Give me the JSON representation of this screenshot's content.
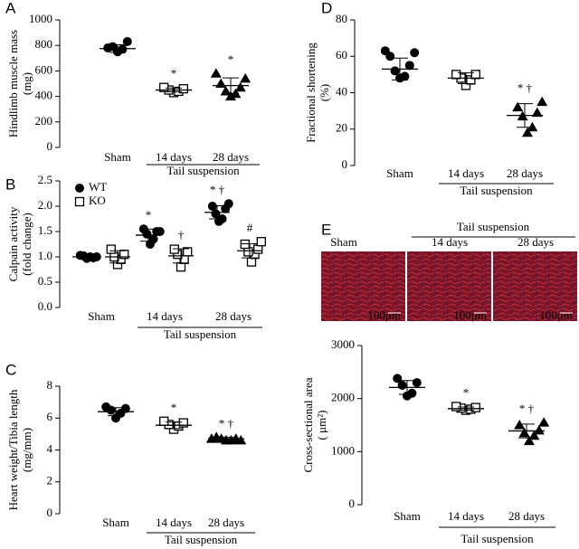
{
  "chart_data": [
    {
      "type": "dot",
      "panel": "A",
      "ylabel": [
        "Hindlimb muscle mass",
        "(mg)"
      ],
      "categories": [
        "Sham",
        "14 days",
        "28 days"
      ],
      "group_label": "Tail suspension",
      "ylim": [
        0,
        1000
      ],
      "yticks": [
        0,
        200,
        400,
        600,
        800,
        1000
      ],
      "color": "#000000",
      "series": [
        {
          "markers": [
            "circle",
            "square-open",
            "triangle"
          ],
          "values": [
            [
              750,
              770,
              790,
              830,
              780
            ],
            [
              430,
              440,
              450,
              460,
              470
            ],
            [
              400,
              420,
              440,
              470,
              500,
              540,
              580
            ]
          ],
          "means": [
            775,
            450,
            485
          ],
          "errors": [
            30,
            15,
            60
          ],
          "annotations": [
            null,
            "*",
            "*"
          ]
        }
      ]
    },
    {
      "type": "dot",
      "panel": "B",
      "ylabel": [
        "Calpain activity",
        "(fold change)"
      ],
      "categories": [
        "Sham",
        "14 days",
        "28 days"
      ],
      "group_label": "Tail suspension",
      "ylim": [
        0,
        2.5
      ],
      "yticks": [
        {
          "value": 0,
          "label": "0.0"
        },
        0.5,
        {
          "value": 1,
          "label": "1.0"
        },
        1.5,
        {
          "value": 2,
          "label": "2.0"
        },
        2.5
      ],
      "color": "#000000",
      "legend": "upper left",
      "series": [
        {
          "name": "WT",
          "marker": "circle",
          "values": [
            [
              0.97,
              1.0,
              1.02,
              0.98,
              1.03,
              1.0
            ],
            [
              1.25,
              1.35,
              1.45,
              1.5,
              1.55,
              1.5
            ],
            [
              1.7,
              1.75,
              1.85,
              1.95,
              2.0,
              2.05
            ]
          ],
          "means": [
            1.0,
            1.43,
            1.88
          ],
          "errors": [
            0.03,
            0.12,
            0.13
          ],
          "annotations": [
            null,
            "*",
            "* †"
          ]
        },
        {
          "name": "KO",
          "marker": "square-open",
          "values": [
            [
              0.85,
              0.95,
              1.0,
              1.05,
              1.15
            ],
            [
              0.8,
              0.95,
              1.05,
              1.1,
              1.15
            ],
            [
              0.9,
              1.05,
              1.1,
              1.15,
              1.25,
              1.3
            ]
          ],
          "means": [
            1.0,
            1.02,
            1.12
          ],
          "errors": [
            0.12,
            0.14,
            0.14
          ],
          "annotations": [
            null,
            "†",
            "#"
          ]
        }
      ]
    },
    {
      "type": "dot",
      "panel": "C",
      "ylabel": [
        "Heart weight/Tibia length",
        "(mg/mm)"
      ],
      "categories": [
        "Sham",
        "14 days",
        "28 days"
      ],
      "group_label": "Tail suspension",
      "ylim": [
        0,
        8
      ],
      "yticks": [
        0,
        2,
        4,
        6,
        8
      ],
      "color": "#000000",
      "series": [
        {
          "markers": [
            "circle",
            "square-open",
            "triangle"
          ],
          "values": [
            [
              6.0,
              6.3,
              6.5,
              6.6,
              6.7
            ],
            [
              5.3,
              5.5,
              5.6,
              5.7,
              5.8
            ],
            [
              4.6,
              4.6,
              4.7,
              4.7,
              4.8,
              4.6,
              4.7
            ]
          ],
          "means": [
            6.4,
            5.55,
            4.7
          ],
          "errors": [
            0.25,
            0.2,
            0.1
          ],
          "annotations": [
            null,
            "*",
            "* †"
          ]
        }
      ]
    },
    {
      "type": "dot",
      "panel": "D",
      "ylabel": [
        "Fractional shortening",
        "(%)"
      ],
      "categories": [
        "Sham",
        "14 days",
        "28 days"
      ],
      "group_label": "Tail suspension",
      "ylim": [
        0,
        80
      ],
      "yticks": [
        0,
        20,
        40,
        60,
        80
      ],
      "color": "#000000",
      "series": [
        {
          "markers": [
            "circle",
            "square-open",
            "triangle"
          ],
          "values": [
            [
              48,
              49,
              52,
              55,
              60,
              62,
              63
            ],
            [
              44,
              47,
              48,
              50,
              50
            ],
            [
              18,
              21,
              27,
              29,
              32,
              35
            ]
          ],
          "means": [
            53,
            48,
            27.5
          ],
          "errors": [
            6,
            3,
            6.5
          ],
          "annotations": [
            null,
            null,
            "* †"
          ]
        }
      ]
    },
    {
      "type": "dot",
      "panel": "E",
      "ylabel": [
        "Cross-sectional area",
        "( μm²)"
      ],
      "categories": [
        "Sham",
        "14 days",
        "28 days"
      ],
      "group_label": "Tail suspension",
      "images": {
        "labels": [
          "Sham",
          "14 days",
          "28 days"
        ],
        "group_label": "Tail suspension",
        "scale_label": "100μm"
      },
      "ylim": [
        0,
        3000
      ],
      "yticks": [
        0,
        1000,
        2000,
        3000
      ],
      "color": "#000000",
      "series": [
        {
          "markers": [
            "circle",
            "square-open",
            "triangle"
          ],
          "values": [
            [
              2050,
              2100,
              2250,
              2300,
              2380
            ],
            [
              1780,
              1800,
              1820,
              1830,
              1850
            ],
            [
              1200,
              1300,
              1350,
              1400,
              1500,
              1550
            ]
          ],
          "means": [
            2210,
            1810,
            1390
          ],
          "errors": [
            130,
            30,
            130
          ],
          "annotations": [
            null,
            "*",
            "* †"
          ]
        }
      ]
    }
  ]
}
